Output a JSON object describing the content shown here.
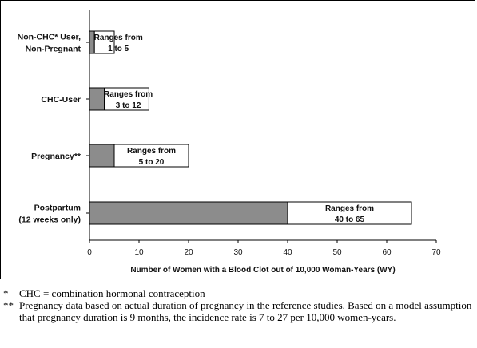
{
  "chart_data": {
    "type": "bar",
    "orientation": "horizontal",
    "stacked": true,
    "categories": [
      [
        "Non-CHC* User,",
        "Non-Pregnant"
      ],
      [
        "CHC-User"
      ],
      [
        "Pregnancy**"
      ],
      [
        "Postpartum",
        "(12 weeks only)"
      ]
    ],
    "series": [
      {
        "values": [
          1,
          3,
          5,
          40
        ],
        "color": "#8c8c8c"
      },
      {
        "values": [
          4,
          9,
          15,
          25
        ],
        "color": "#ffffff"
      }
    ],
    "range_labels": [
      [
        "Ranges from",
        "1 to 5"
      ],
      [
        "Ranges from",
        "3 to 12"
      ],
      [
        "Ranges from",
        "5 to 20"
      ],
      [
        "Ranges from",
        "40 to 65"
      ]
    ],
    "xlim": [
      0,
      70
    ],
    "xticks": [
      0,
      10,
      20,
      30,
      40,
      50,
      60,
      70
    ],
    "xlabel": "Number of Women with a Blood Clot out of 10,000 Woman-Years (WY)",
    "grid": false
  },
  "footnotes": [
    {
      "mark": "*",
      "text": "CHC = combination hormonal contraception"
    },
    {
      "mark": "**",
      "text": "Pregnancy data based on actual duration of pregnancy in the reference studies. Based on a model assumption that pregnancy duration is 9 months, the incidence rate is 7 to 27 per 10,000 women-years."
    }
  ]
}
